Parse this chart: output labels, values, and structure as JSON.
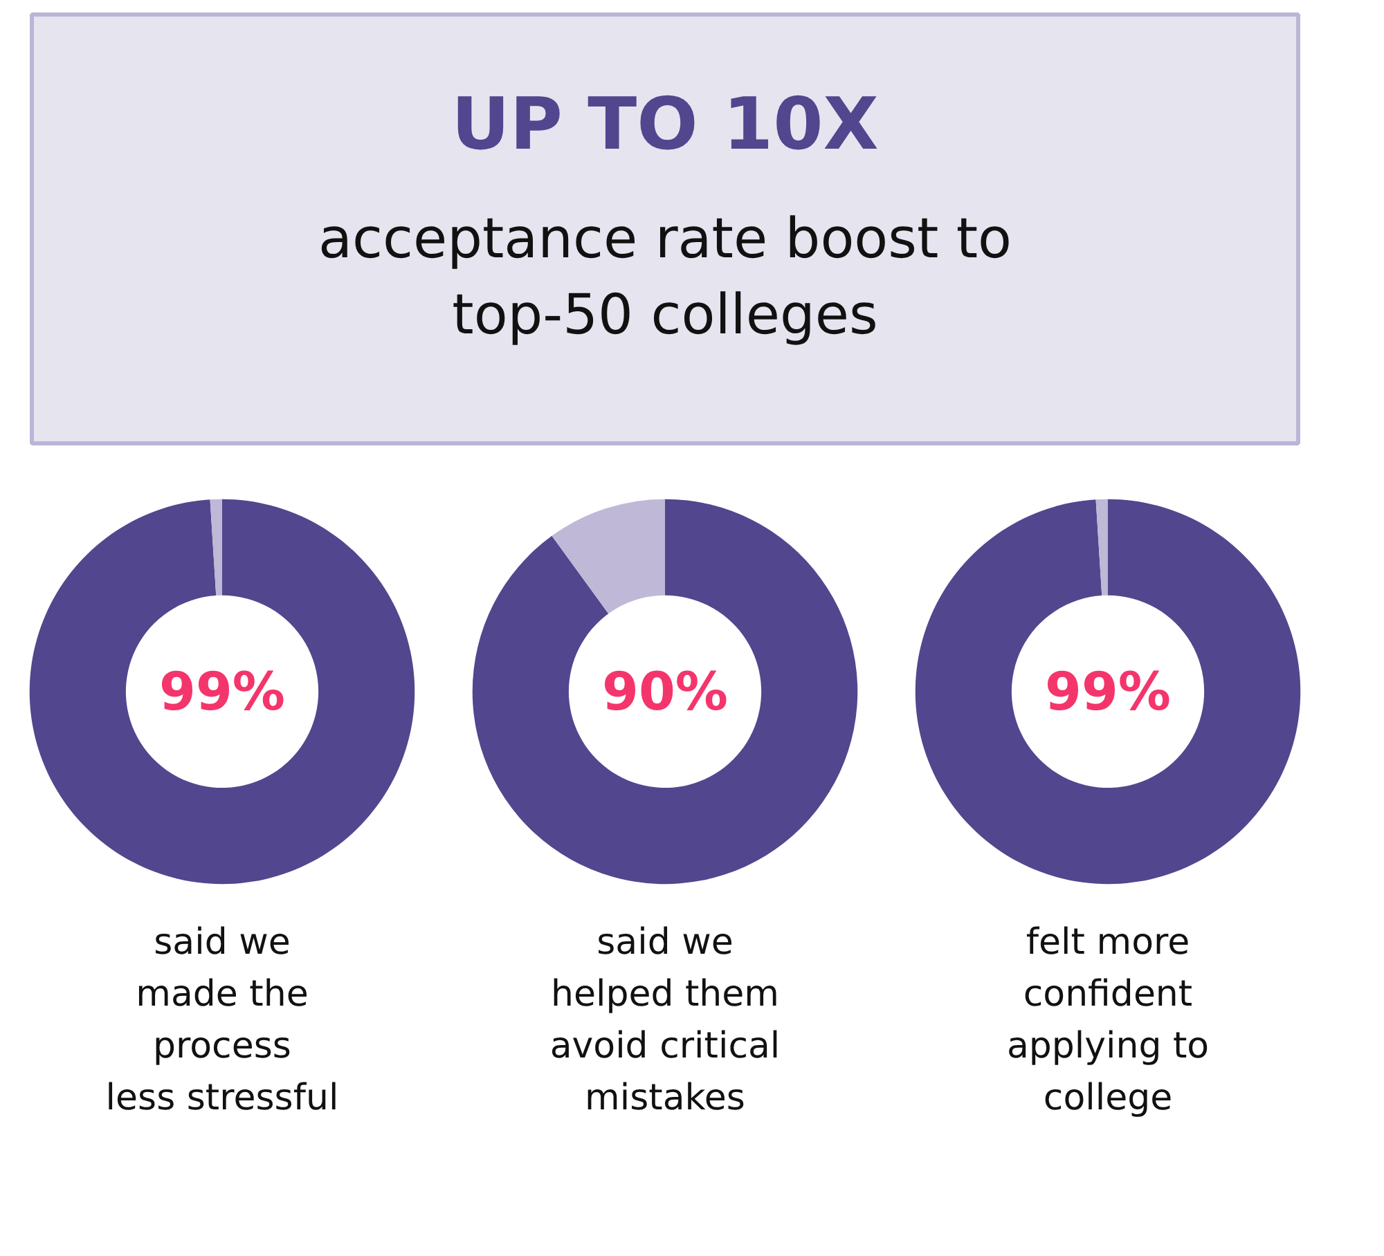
{
  "chart_data": [
    {
      "type": "other",
      "title": "UP TO 10X",
      "subtitle": "acceptance rate boost to\ntop-50 colleges"
    },
    {
      "type": "donut",
      "categories": [
        null,
        null
      ],
      "values": [
        99,
        1
      ],
      "colors": [
        "#52468e",
        "#bfb8d6"
      ],
      "value_labels": [
        "99%",
        null
      ],
      "annotations": [
        "said we\nmade the\nprocess\nless stressful"
      ]
    },
    {
      "type": "donut",
      "categories": [
        null,
        null
      ],
      "values": [
        90,
        10
      ],
      "colors": [
        "#52468e",
        "#bfb8d6"
      ],
      "value_labels": [
        "90%",
        null
      ],
      "annotations": [
        "said we\nhelped them\navoid critical\nmistakes"
      ]
    },
    {
      "type": "donut",
      "categories": [
        null,
        null
      ],
      "values": [
        99,
        1
      ],
      "colors": [
        "#52468e",
        "#bfb8d6"
      ],
      "value_labels": [
        "99%",
        null
      ],
      "annotations": [
        "felt more\nconfident\napplying to\ncollege"
      ]
    }
  ]
}
